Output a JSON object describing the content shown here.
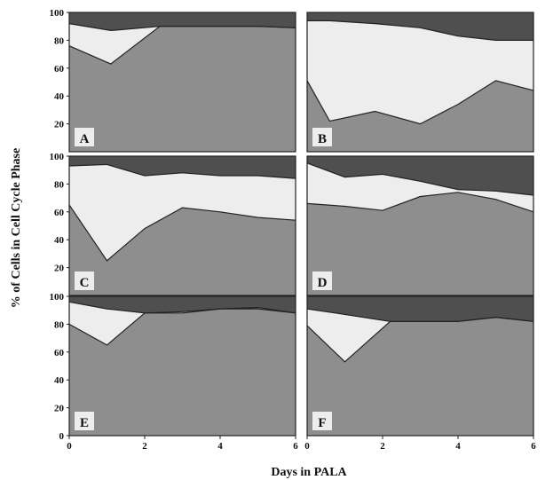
{
  "colors": {
    "lower_band": "#8e8e8e",
    "middle_band": "#ededed",
    "upper_band": "#4f4f4f",
    "label_box": "#ededed",
    "outline": "#222222"
  },
  "chart_data": {
    "type": "area",
    "xlabel": "Days  in PALA",
    "ylabel": "% of Cells in Cell Cycle Phase",
    "xlim": [
      0,
      6
    ],
    "ylim": [
      0,
      100
    ],
    "x_ticks": [
      "0",
      "2",
      "4",
      "6"
    ],
    "y_ticks": [
      "0",
      "20",
      "40",
      "60",
      "80",
      "100"
    ],
    "grid": false,
    "legend": "none",
    "panels": [
      {
        "label": "A",
        "lower": {
          "x": [
            0,
            1.1,
            2.4,
            3,
            4,
            5,
            6
          ],
          "y": [
            76,
            63,
            90,
            90,
            90,
            90,
            89
          ]
        },
        "upper": {
          "x": [
            0,
            1.1,
            2.4,
            3,
            4,
            5,
            6
          ],
          "y": [
            92,
            87,
            90,
            90,
            90,
            90,
            89
          ]
        }
      },
      {
        "label": "B",
        "lower": {
          "x": [
            0,
            0.6,
            1.8,
            3,
            4,
            5,
            6
          ],
          "y": [
            51,
            22,
            29,
            20,
            34,
            51,
            44
          ]
        },
        "upper": {
          "x": [
            0,
            0.6,
            1.8,
            3,
            4,
            5,
            6
          ],
          "y": [
            94,
            94,
            92,
            89,
            83,
            80,
            80
          ]
        }
      },
      {
        "label": "C",
        "lower": {
          "x": [
            0,
            1,
            2,
            3,
            4,
            5,
            6
          ],
          "y": [
            65,
            25,
            48,
            63,
            60,
            56,
            54
          ]
        },
        "upper": {
          "x": [
            0,
            1,
            2,
            3,
            4,
            5,
            6
          ],
          "y": [
            93,
            94,
            86,
            88,
            86,
            86,
            84
          ]
        }
      },
      {
        "label": "D",
        "lower": {
          "x": [
            0,
            1,
            2,
            3,
            4,
            5,
            6
          ],
          "y": [
            66,
            64,
            61,
            71,
            74,
            69,
            60
          ]
        },
        "upper": {
          "x": [
            0,
            1,
            2,
            3,
            4,
            5,
            6
          ],
          "y": [
            95,
            85,
            87,
            82,
            76,
            75,
            72
          ]
        }
      },
      {
        "label": "E",
        "lower": {
          "x": [
            0,
            1,
            2,
            3,
            4,
            5,
            6
          ],
          "y": [
            80,
            65,
            88,
            88,
            91,
            91,
            88
          ]
        },
        "upper": {
          "x": [
            0,
            1,
            2,
            3,
            4,
            5,
            6
          ],
          "y": [
            96,
            91,
            88,
            89,
            91,
            92,
            88
          ]
        }
      },
      {
        "label": "F",
        "lower": {
          "x": [
            0,
            1,
            2.2,
            3,
            4,
            5,
            6
          ],
          "y": [
            79,
            53,
            82,
            82,
            82,
            85,
            82
          ]
        },
        "upper": {
          "x": [
            0,
            1,
            2.2,
            3,
            4,
            5,
            6
          ],
          "y": [
            91,
            87,
            82,
            82,
            82,
            85,
            82
          ]
        }
      }
    ]
  }
}
